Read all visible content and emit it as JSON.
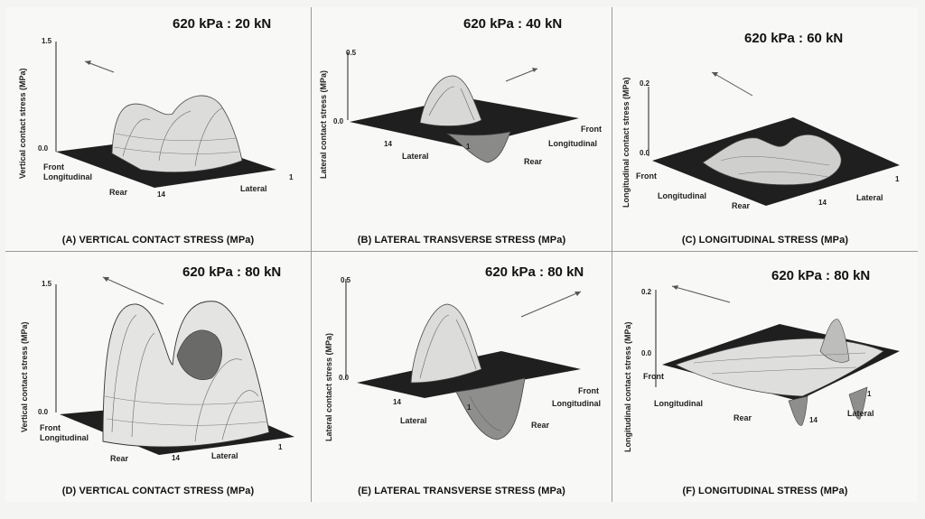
{
  "panels": [
    {
      "id": "A",
      "load": "620 kPa : 20 kN",
      "caption": "(A) VERTICAL CONTACT STRESS (MPa)",
      "y_label": "Vertical contact stress (MPa)",
      "y_max": "1.5",
      "y_zero": "0.0",
      "labels": {
        "front": "Front",
        "longitudinal": "Longitudinal",
        "rear": "Rear",
        "lateral": "Lateral",
        "tick_14": "14",
        "tick_1": "1"
      }
    },
    {
      "id": "B",
      "load": "620 kPa : 40 kN",
      "caption": "(B) LATERAL TRANSVERSE STRESS (MPa)",
      "y_label": "Lateral contact stress (MPa)",
      "y_max": "0.5",
      "y_zero": "0.0",
      "labels": {
        "front": "Front",
        "longitudinal": "Longitudinal",
        "rear": "Rear",
        "lateral": "Lateral",
        "tick_14": "14",
        "tick_1": "1"
      }
    },
    {
      "id": "C",
      "load": "620 kPa : 60 kN",
      "caption": "(C) LONGITUDINAL STRESS (MPa)",
      "y_label": "Longitudinal contact stress (MPa)",
      "y_max": "0.2",
      "y_zero": "0.0",
      "labels": {
        "front": "Front",
        "longitudinal": "Longitudinal",
        "rear": "Rear",
        "lateral": "Lateral",
        "tick_14": "14",
        "tick_1": "1"
      }
    },
    {
      "id": "D",
      "load": "620 kPa : 80 kN",
      "caption": "(D) VERTICAL CONTACT STRESS (MPa)",
      "y_label": "Vertical contact stress (MPa)",
      "y_max": "1.5",
      "y_zero": "0.0",
      "labels": {
        "front": "Front",
        "longitudinal": "Longitudinal",
        "rear": "Rear",
        "lateral": "Lateral",
        "tick_14": "14",
        "tick_1": "1"
      }
    },
    {
      "id": "E",
      "load": "620 kPa : 80 kN",
      "caption": "(E) LATERAL TRANSVERSE STRESS (MPa)",
      "y_label": "Lateral contact stress (MPa)",
      "y_max": "0.5",
      "y_zero": "0.0",
      "labels": {
        "front": "Front",
        "longitudinal": "Longitudinal",
        "rear": "Rear",
        "lateral": "Lateral",
        "tick_14": "14",
        "tick_1": "1"
      }
    },
    {
      "id": "F",
      "load": "620 kPa : 80 kN",
      "caption": "(F) LONGITUDINAL STRESS (MPa)",
      "y_label": "Longitudinal contact stress (MPa)",
      "y_max": "0.2",
      "y_zero": "0.0",
      "labels": {
        "front": "Front",
        "longitudinal": "Longitudinal",
        "rear": "Rear",
        "lateral": "Lateral",
        "tick_14": "14",
        "tick_1": "1"
      }
    }
  ],
  "colors": {
    "surface_light": "#e6e6e4",
    "surface_dark": "#2a2a2a",
    "mesh": "#555555",
    "base": "#1e1e1e"
  }
}
